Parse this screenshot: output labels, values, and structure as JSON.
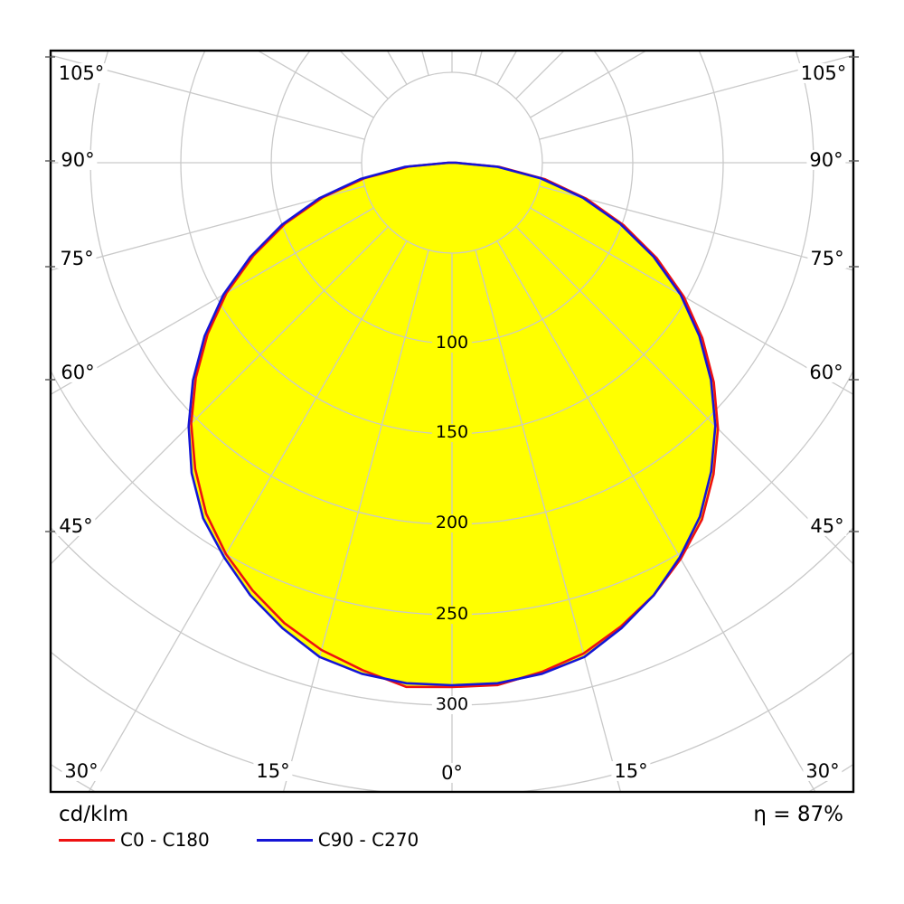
{
  "chart": {
    "unit_label": "cd/klm",
    "efficiency_label": "η = 87%",
    "legend": [
      {
        "label": "C0 - C180",
        "color": "#ee1111"
      },
      {
        "label": "C90 - C270",
        "color": "#1515d6"
      }
    ],
    "angle_labels_left": [
      "105°",
      "90°",
      "75°",
      "60°",
      "45°"
    ],
    "angle_labels_right": [
      "105°",
      "90°",
      "75°",
      "60°",
      "45°"
    ],
    "angle_labels_bottom": [
      "30°",
      "15°",
      "0°",
      "15°",
      "30°"
    ],
    "radial_labels": [
      "100",
      "150",
      "200",
      "250",
      "300"
    ]
  },
  "chart_data": {
    "type": "line",
    "coordinate_system": "polar",
    "title": "Luminous intensity distribution curve",
    "unit": "cd/klm",
    "efficiency": "η = 87%",
    "angle_grid_step_deg": 15,
    "angle_label_range_deg": [
      0,
      105
    ],
    "radial_ticks": [
      100,
      150,
      200,
      250,
      300
    ],
    "radial_grid_step": 50,
    "radial_grid_max": 400,
    "grid_on": true,
    "legend_position": "bottom-left",
    "fill_color": "#ffff00",
    "grid_color": "#c9c9c9",
    "gamma_deg": [
      0,
      5,
      10,
      15,
      20,
      25,
      30,
      35,
      40,
      45,
      50,
      55,
      60,
      65,
      70,
      75,
      80,
      85,
      90
    ],
    "series": [
      {
        "name": "C0 - C180",
        "color": "#ee1111",
        "C0": [
          290,
          290,
          286,
          281,
          273,
          264,
          253,
          241,
          225,
          208,
          189,
          169,
          148,
          125,
          101,
          77,
          52,
          26,
          2
        ],
        "C180": [
          290,
          291,
          285,
          279,
          271,
          261,
          250,
          237,
          221,
          204,
          185,
          165,
          144,
          121,
          98,
          74,
          49,
          24,
          2
        ]
      },
      {
        "name": "C90 - C270",
        "color": "#1515d6",
        "C90": [
          289,
          289,
          287,
          283,
          274,
          264,
          252,
          239,
          223,
          206,
          187,
          167,
          146,
          123,
          99,
          75,
          50,
          25,
          2
        ],
        "C270": [
          289,
          289,
          287,
          283,
          274,
          264,
          252,
          240,
          224,
          206,
          187,
          167,
          146,
          123,
          100,
          76,
          51,
          26,
          2
        ]
      }
    ]
  }
}
